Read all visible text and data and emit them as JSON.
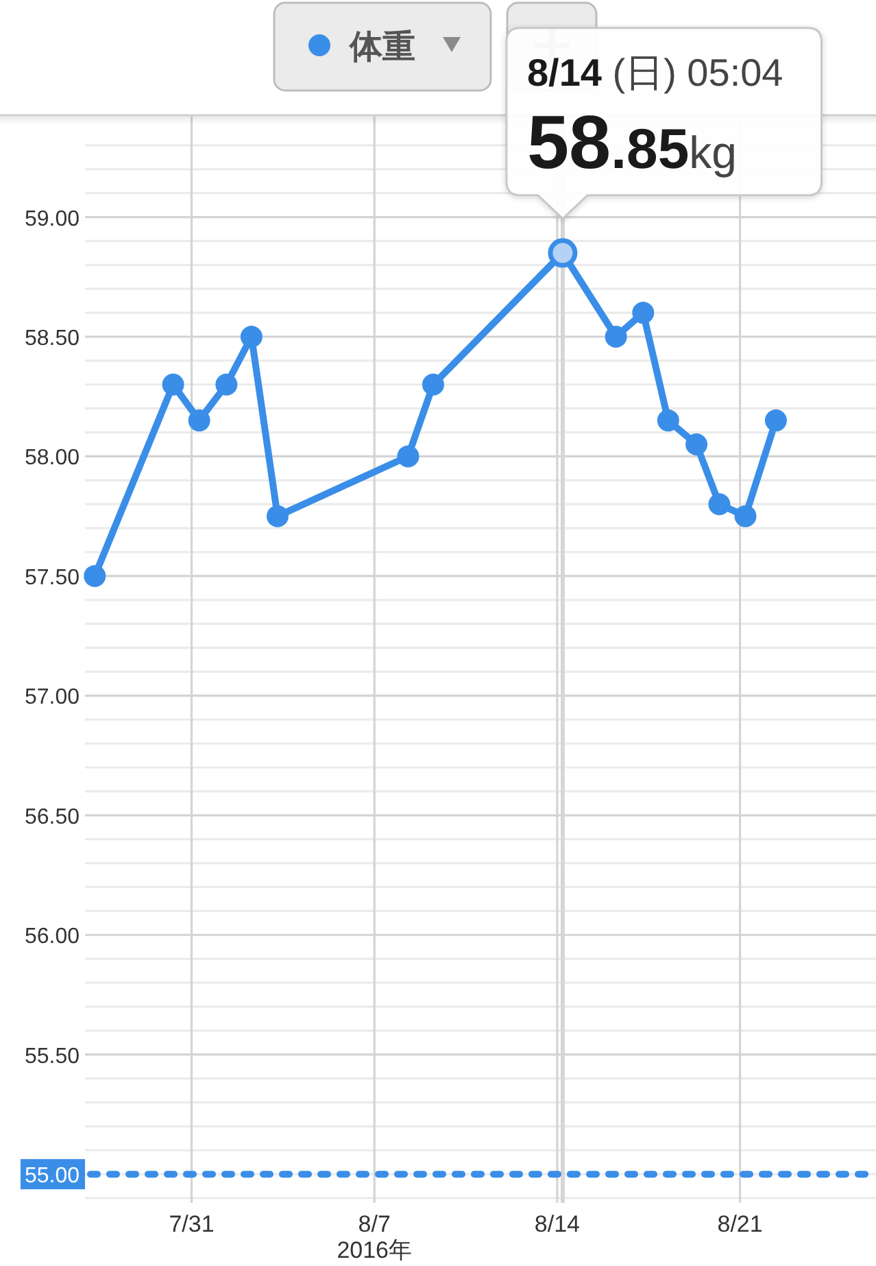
{
  "chart_data": {
    "type": "line",
    "x": [
      "2016-07-27T07:00",
      "2016-07-30T07:00",
      "2016-07-31T07:00",
      "2016-08-01T08:00",
      "2016-08-02T07:00",
      "2016-08-03T07:00",
      "2016-08-08T07:00",
      "2016-08-09T06:00",
      "2016-08-14T05:04",
      "2016-08-16T06:00",
      "2016-08-17T07:00",
      "2016-08-18T06:00",
      "2016-08-19T08:00",
      "2016-08-20T05:00",
      "2016-08-21T05:00",
      "2016-08-22T09:00"
    ],
    "series": [
      {
        "name": "体重",
        "color": "#3a8ee8",
        "values": [
          57.5,
          58.3,
          58.15,
          58.3,
          58.5,
          57.75,
          58.0,
          58.3,
          58.85,
          58.5,
          58.6,
          58.15,
          58.05,
          57.8,
          57.75,
          58.15
        ]
      }
    ],
    "xlim": [
      "2016-07-26T22:00",
      "2016-08-26T05:00"
    ],
    "ylim": [
      54.88,
      59.42
    ],
    "xticks": [
      {
        "value": "2016-07-31",
        "label": "7/31"
      },
      {
        "value": "2016-08-07",
        "label": "8/7\n2016年"
      },
      {
        "value": "2016-08-14",
        "label": "8/14"
      },
      {
        "value": "2016-08-21",
        "label": "8/21"
      }
    ],
    "yticks": [
      {
        "value": 54.9,
        "label": null
      },
      {
        "value": 55,
        "label": null
      },
      {
        "value": 55.1,
        "label": null
      },
      {
        "value": 55.2,
        "label": null
      },
      {
        "value": 55.3,
        "label": null
      },
      {
        "value": 55.4,
        "label": null
      },
      {
        "value": 55.5,
        "label": "55.50"
      },
      {
        "value": 55.6,
        "label": null
      },
      {
        "value": 55.7,
        "label": null
      },
      {
        "value": 55.8,
        "label": null
      },
      {
        "value": 55.9,
        "label": null
      },
      {
        "value": 56,
        "label": "56.00"
      },
      {
        "value": 56.1,
        "label": null
      },
      {
        "value": 56.2,
        "label": null
      },
      {
        "value": 56.3,
        "label": null
      },
      {
        "value": 56.4,
        "label": null
      },
      {
        "value": 56.5,
        "label": "56.50"
      },
      {
        "value": 56.6,
        "label": null
      },
      {
        "value": 56.7,
        "label": null
      },
      {
        "value": 56.8,
        "label": null
      },
      {
        "value": 56.9,
        "label": null
      },
      {
        "value": 57,
        "label": "57.00"
      },
      {
        "value": 57.1,
        "label": null
      },
      {
        "value": 57.2,
        "label": null
      },
      {
        "value": 57.3,
        "label": null
      },
      {
        "value": 57.4,
        "label": null
      },
      {
        "value": 57.5,
        "label": "57.50"
      },
      {
        "value": 57.6,
        "label": null
      },
      {
        "value": 57.7,
        "label": null
      },
      {
        "value": 57.8,
        "label": null
      },
      {
        "value": 57.9,
        "label": null
      },
      {
        "value": 58,
        "label": "58.00"
      },
      {
        "value": 58.1,
        "label": null
      },
      {
        "value": 58.2,
        "label": null
      },
      {
        "value": 58.3,
        "label": null
      },
      {
        "value": 58.4,
        "label": null
      },
      {
        "value": 58.5,
        "label": "58.50"
      },
      {
        "value": 58.6,
        "label": null
      },
      {
        "value": 58.7,
        "label": null
      },
      {
        "value": 58.8,
        "label": null
      },
      {
        "value": 58.9,
        "label": null
      },
      {
        "value": 59,
        "label": "59.00"
      },
      {
        "value": 59.1,
        "label": null
      },
      {
        "value": 59.2,
        "label": null
      },
      {
        "value": 59.3,
        "label": null
      }
    ],
    "grid": true,
    "legend": "top",
    "marker": "circle",
    "ref_lines": [
      {
        "axis": "y",
        "value": 55,
        "label": "55.00",
        "color": "#3a8ee8",
        "line_style": "dotted"
      },
      {
        "axis": "x",
        "value": "2016-08-14T05:04",
        "color": "#d6d6d6"
      }
    ],
    "annotations": [
      {
        "text": "8/14 (日) 05:04\n58.85kg",
        "x": "2016-08-14T05:04",
        "y": 58.85
      }
    ]
  }
}
